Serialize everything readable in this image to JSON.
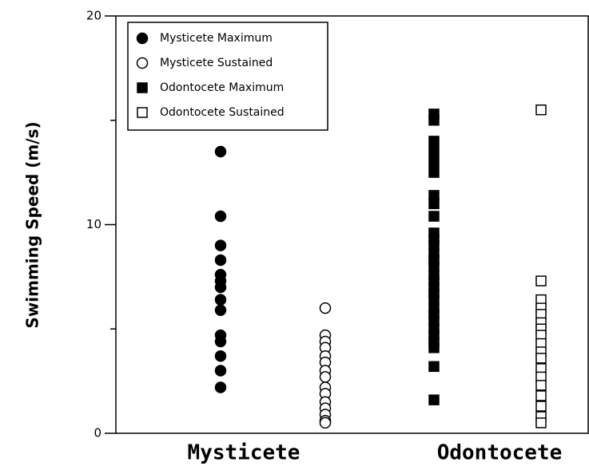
{
  "chart_data": {
    "type": "strip",
    "y_label": "Swimming Speed (m/s)",
    "categories": [
      "Mysticete",
      "Odontocete"
    ],
    "series": [
      {
        "name": "Mysticete Maximum",
        "marker": "circle",
        "filled": true,
        "color": "#000000",
        "values": [
          13.5,
          10.4,
          9.0,
          8.3,
          7.6,
          7.3,
          7.0,
          6.4,
          5.9,
          4.7,
          4.4,
          3.7,
          3.0,
          2.2
        ]
      },
      {
        "name": "Mysticete Sustained",
        "marker": "circle",
        "filled": false,
        "color": "#000000",
        "values": [
          6.0,
          4.7,
          4.4,
          4.1,
          3.7,
          3.4,
          3.0,
          2.7,
          2.2,
          1.9,
          1.5,
          1.2,
          0.9,
          0.6,
          0.5
        ]
      },
      {
        "name": "Odontocete Maximum",
        "marker": "square",
        "filled": true,
        "color": "#000000",
        "values": [
          15.3,
          15.0,
          14.0,
          13.5,
          13.0,
          12.5,
          11.4,
          11.0,
          10.4,
          9.6,
          9.3,
          9.0,
          8.6,
          8.3,
          8.0,
          7.6,
          7.3,
          7.0,
          6.7,
          6.4,
          6.0,
          5.7,
          5.4,
          5.0,
          4.7,
          4.4,
          4.1,
          3.2,
          1.6
        ]
      },
      {
        "name": "Odontocete Sustained",
        "marker": "square",
        "filled": false,
        "color": "#000000",
        "values": [
          15.5,
          7.3,
          6.4,
          6.0,
          5.7,
          5.3,
          5.0,
          4.7,
          4.3,
          3.9,
          3.6,
          3.1,
          2.7,
          2.3,
          1.8,
          1.3,
          0.8,
          0.5
        ]
      }
    ],
    "ylim": [
      0,
      20
    ],
    "yticks": [
      0,
      10,
      20
    ],
    "yminorticks": [
      5,
      15
    ],
    "legend": "upper left"
  }
}
